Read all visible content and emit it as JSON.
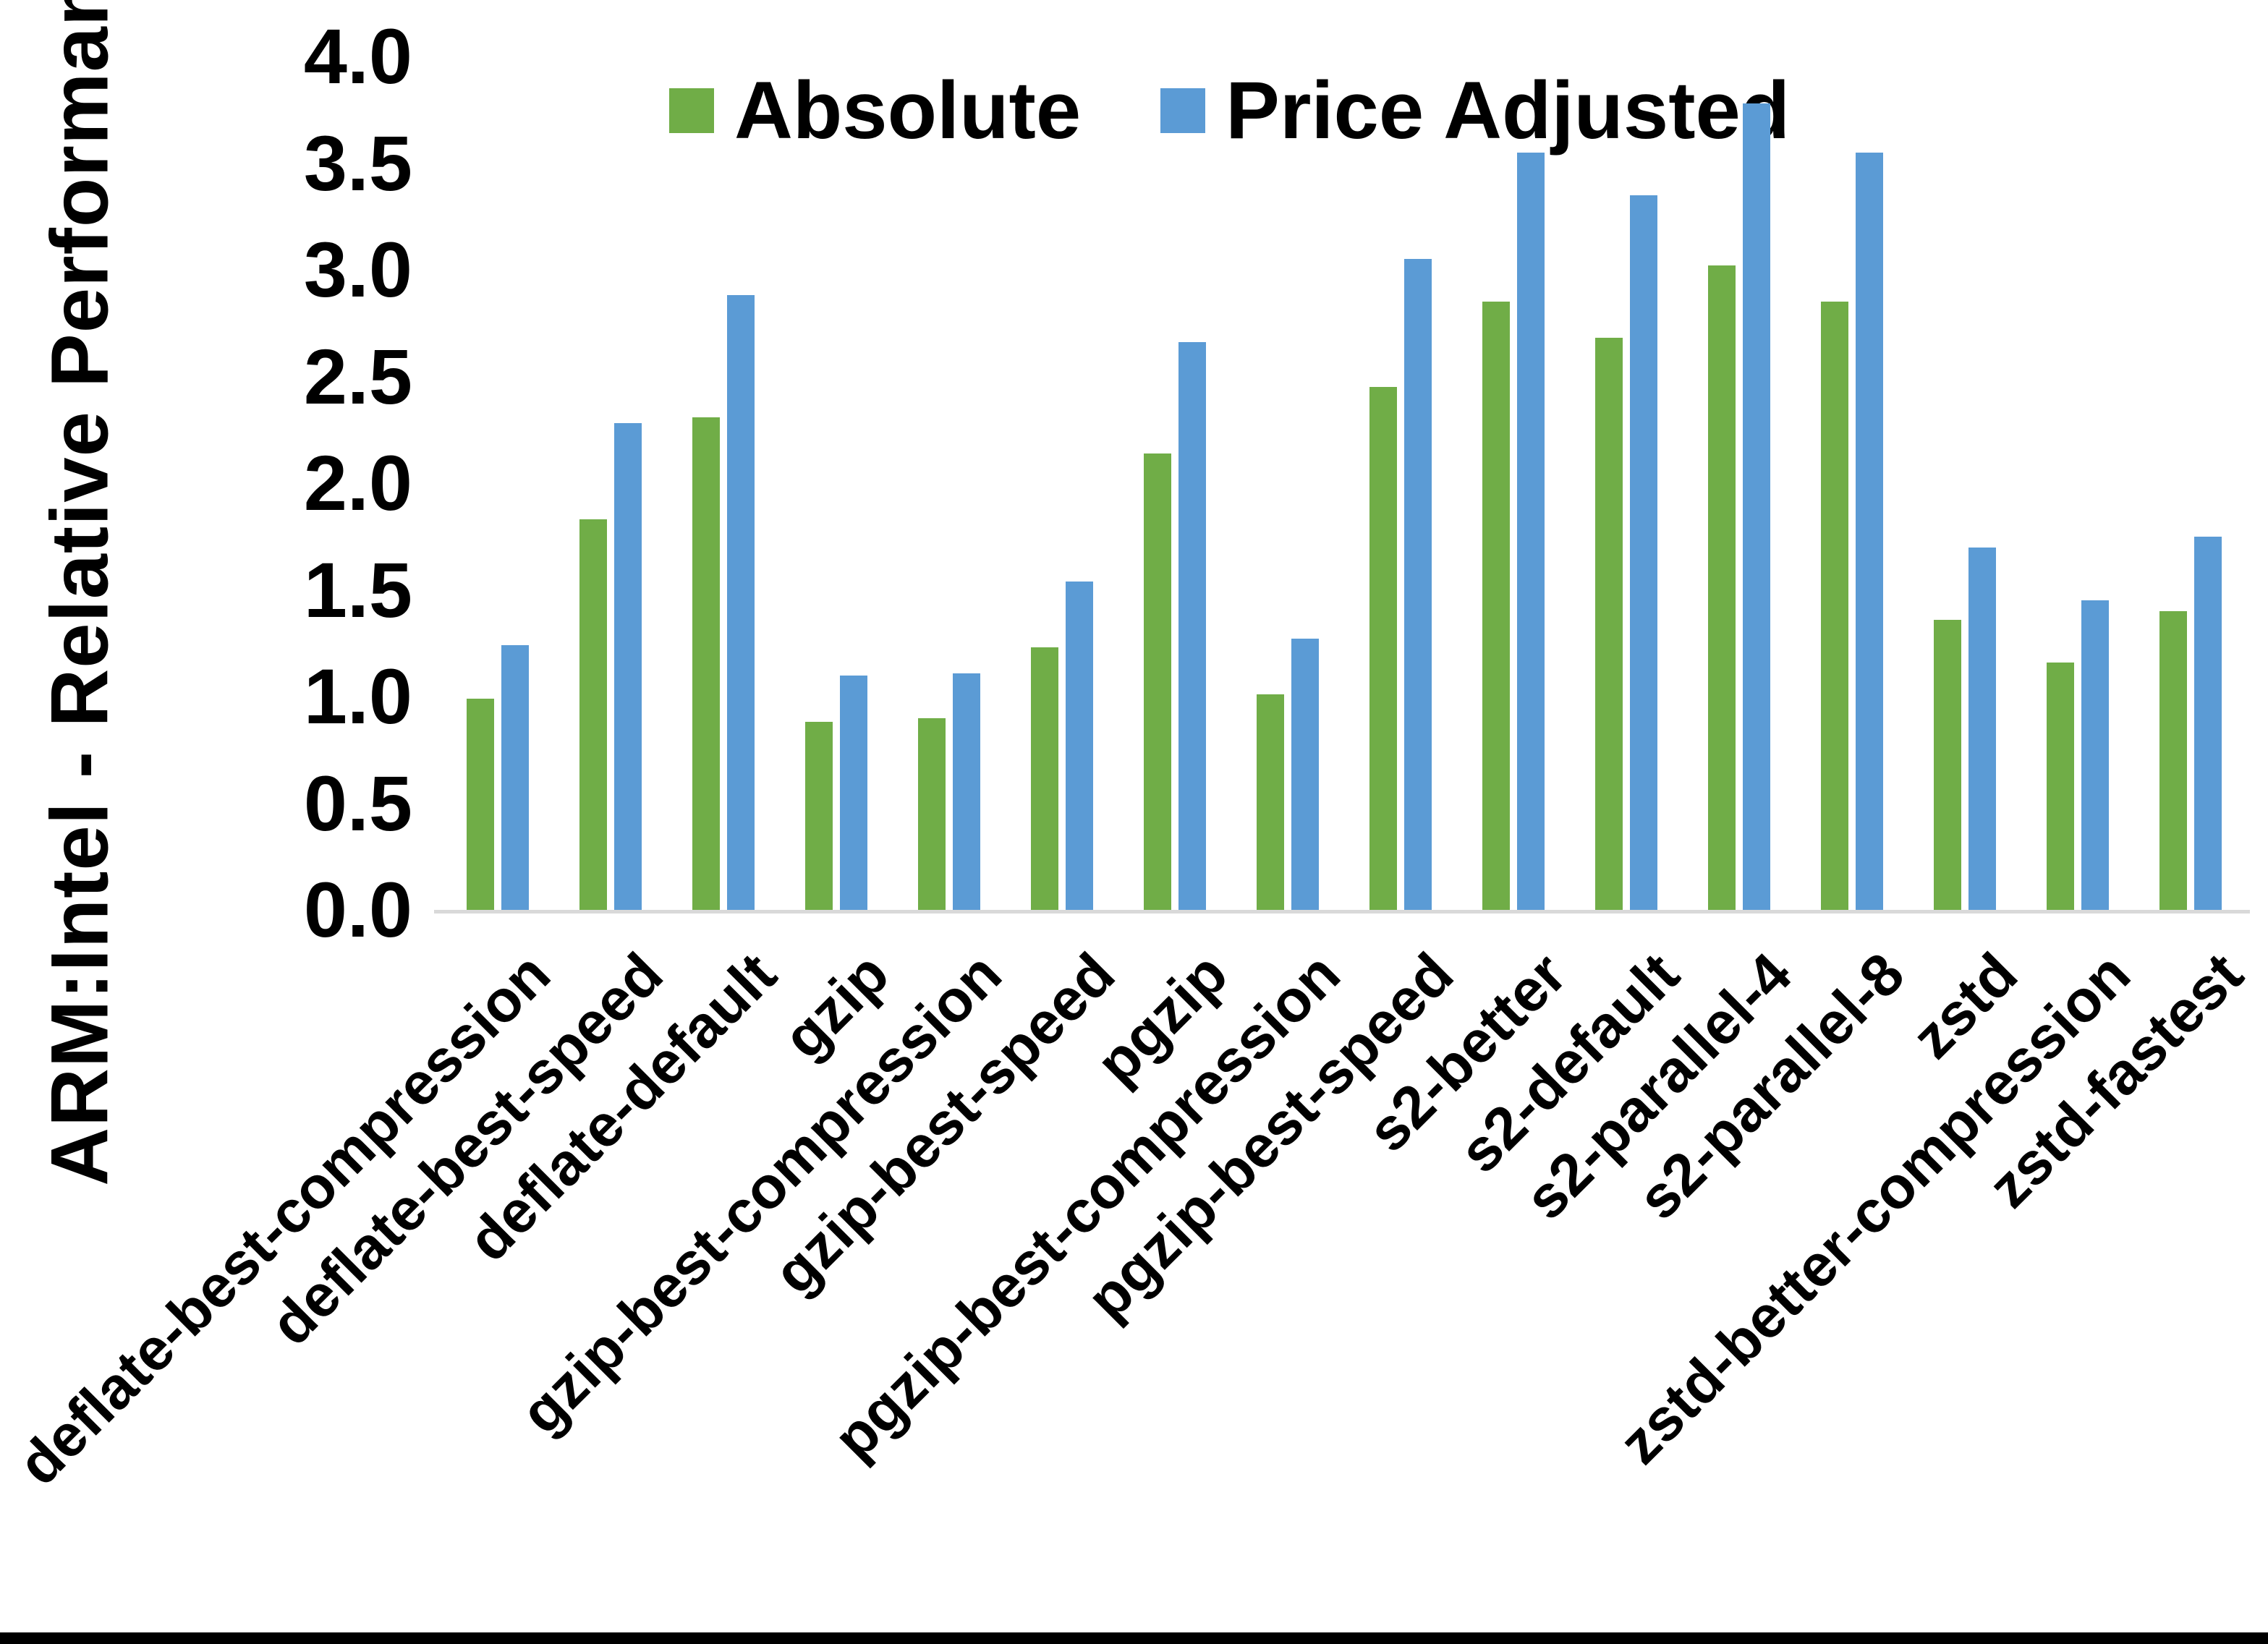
{
  "figure": {
    "background": "#ffffff",
    "bottom_border_color": "#000000",
    "axis_line_color": "#d9d9d9",
    "text_color": "#000000"
  },
  "chart_data": {
    "type": "bar",
    "title": "",
    "xlabel": "",
    "ylabel": "ARM:Intel - Relative Performance",
    "ylim": [
      0.0,
      4.0
    ],
    "ytick_step": 0.5,
    "ytick_labels": [
      "0.0",
      "0.5",
      "1.0",
      "1.5",
      "2.0",
      "2.5",
      "3.0",
      "3.5",
      "4.0"
    ],
    "grid": false,
    "legend_position": "top-center",
    "categories": [
      "deflate-best-compression",
      "deflate-best-speed",
      "deflate-default",
      "gzip",
      "gzip-best-compression",
      "gzip-best-speed",
      "pgzip",
      "pgzip-best-compression",
      "pgzip-best-speed",
      "s2-better",
      "s2-default",
      "s2-parallel-4",
      "s2-parallel-8",
      "zstd",
      "zstd-better-compression",
      "zstd-fastest"
    ],
    "series": [
      {
        "name": "Absolute",
        "color": "#70AD47",
        "values": [
          0.99,
          1.83,
          2.31,
          0.88,
          0.9,
          1.23,
          2.14,
          1.01,
          2.45,
          2.85,
          2.68,
          3.02,
          2.85,
          1.36,
          1.16,
          1.4
        ]
      },
      {
        "name": "Price Adjusted",
        "color": "#5B9BD5",
        "values": [
          1.24,
          2.28,
          2.88,
          1.1,
          1.11,
          1.54,
          2.66,
          1.27,
          3.05,
          3.55,
          3.35,
          3.78,
          3.55,
          1.7,
          1.45,
          1.75
        ]
      }
    ]
  }
}
